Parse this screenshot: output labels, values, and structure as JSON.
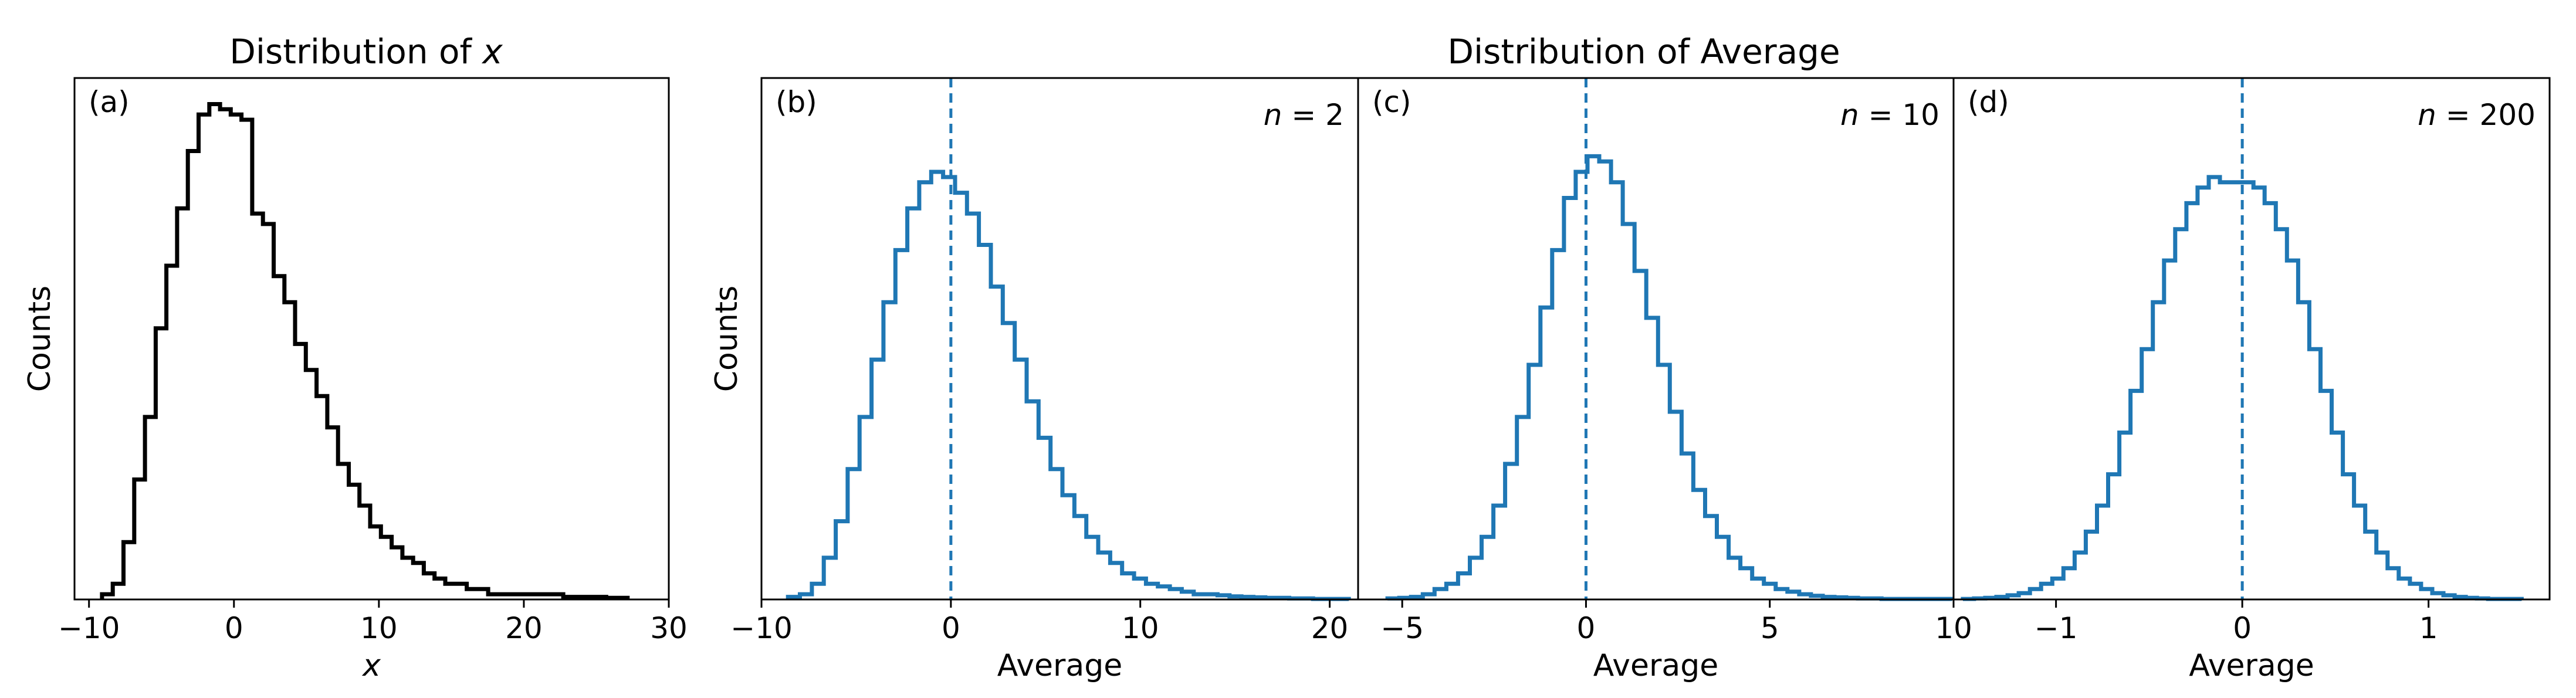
{
  "colors": {
    "black": "#000000",
    "blue": "#1f77b4"
  },
  "figure": {
    "left_title": "Distribution of",
    "left_title_var": "x",
    "right_title": "Distribution of Average"
  },
  "chart_data": [
    {
      "id": "a",
      "type": "line",
      "step": true,
      "panel_label": "(a)",
      "title": "Distribution of x",
      "xlabel": "x",
      "ylabel": "Counts",
      "xlim": [
        -11.0,
        30.0
      ],
      "ylim": [
        0,
        100
      ],
      "xticks": [
        -10,
        0,
        10,
        20,
        30
      ],
      "color": "black",
      "mean_line": null,
      "bin_edges": [
        -9.1,
        -8.36,
        -7.62,
        -6.88,
        -6.14,
        -5.4,
        -4.66,
        -3.92,
        -3.18,
        -2.44,
        -1.7,
        -0.96,
        -0.22,
        0.52,
        1.26,
        2.0,
        2.74,
        3.48,
        4.22,
        4.96,
        5.7,
        6.44,
        7.18,
        7.92,
        8.66,
        9.4,
        10.14,
        10.88,
        11.62,
        12.36,
        13.1,
        13.84,
        14.58,
        15.32,
        16.06,
        16.8,
        17.54,
        18.28,
        19.02,
        19.76,
        20.5,
        21.24,
        21.98,
        22.72,
        23.46,
        24.2,
        24.94,
        25.68,
        26.42,
        27.16
      ],
      "counts": [
        1,
        3,
        11,
        23,
        35,
        52,
        64,
        75,
        86,
        93,
        95,
        94,
        93,
        92,
        74,
        72,
        62,
        57,
        49,
        44,
        39,
        33,
        26,
        22,
        18,
        14,
        12,
        10,
        8,
        7,
        5,
        4,
        3,
        3,
        2,
        2,
        1,
        1,
        1,
        1,
        1,
        1,
        1,
        0.5,
        0.5,
        0.5,
        0.5,
        0.3,
        0.3
      ]
    },
    {
      "id": "b",
      "type": "line",
      "step": true,
      "panel_label": "(b)",
      "n_label": "n = 2",
      "title": "Distribution of Average",
      "xlabel": "Average",
      "ylabel": "Counts",
      "xlim": [
        -10.0,
        21.5
      ],
      "ylim": [
        0,
        100
      ],
      "xticks": [
        -10,
        0,
        10,
        20
      ],
      "color": "blue",
      "mean_line": 0,
      "bin_edges": [
        -8.6,
        -7.97,
        -7.34,
        -6.71,
        -6.08,
        -5.45,
        -4.82,
        -4.19,
        -3.56,
        -2.93,
        -2.3,
        -1.67,
        -1.04,
        -0.41,
        0.22,
        0.85,
        1.48,
        2.11,
        2.74,
        3.37,
        4.0,
        4.63,
        5.26,
        5.89,
        6.52,
        7.15,
        7.78,
        8.41,
        9.04,
        9.67,
        10.3,
        10.93,
        11.56,
        12.19,
        12.82,
        13.45,
        14.08,
        14.71,
        15.34,
        15.97,
        16.6,
        17.23,
        17.86,
        18.49,
        19.12,
        19.75,
        20.38,
        21.01
      ],
      "counts": [
        0.5,
        1,
        3,
        8,
        15,
        25,
        35,
        46,
        57,
        67,
        75,
        80,
        82,
        81,
        78,
        74,
        68,
        60,
        53,
        46,
        38,
        31,
        25,
        20,
        16,
        12,
        9,
        7,
        5,
        4,
        3,
        2.5,
        2,
        1.5,
        1,
        1,
        0.8,
        0.6,
        0.5,
        0.4,
        0.3,
        0.3,
        0.2,
        0.2,
        0.1,
        0.1,
        0.1
      ]
    },
    {
      "id": "c",
      "type": "line",
      "step": true,
      "panel_label": "(c)",
      "n_label": "n = 10",
      "xlabel": "Average",
      "xlim": [
        -6.2,
        10.0
      ],
      "ylim": [
        0,
        100
      ],
      "xticks": [
        -5,
        0,
        5,
        10
      ],
      "color": "blue",
      "mean_line": 0,
      "bin_edges": [
        -5.4,
        -5.08,
        -4.76,
        -4.44,
        -4.12,
        -3.8,
        -3.48,
        -3.16,
        -2.84,
        -2.52,
        -2.2,
        -1.88,
        -1.56,
        -1.24,
        -0.92,
        -0.6,
        -0.28,
        0.04,
        0.36,
        0.68,
        1.0,
        1.32,
        1.64,
        1.96,
        2.28,
        2.6,
        2.92,
        3.24,
        3.56,
        3.88,
        4.2,
        4.52,
        4.84,
        5.16,
        5.48,
        5.8,
        6.12,
        6.44,
        6.76,
        7.08,
        7.4,
        7.72,
        8.04,
        8.36,
        8.68,
        9.0,
        9.32,
        9.64,
        9.96
      ],
      "counts": [
        0.2,
        0.3,
        0.5,
        1,
        2,
        3,
        5,
        8,
        12,
        18,
        26,
        35,
        45,
        56,
        67,
        77,
        82,
        85,
        84,
        80,
        72,
        63,
        54,
        45,
        36,
        28,
        21,
        16,
        12,
        8,
        6,
        4,
        3,
        2,
        1.5,
        1,
        0.7,
        0.5,
        0.4,
        0.3,
        0.2,
        0.2,
        0.1,
        0.1,
        0.1,
        0.1,
        0.1,
        0.1
      ]
    },
    {
      "id": "d",
      "type": "line",
      "step": true,
      "panel_label": "(d)",
      "n_label": "n = 200",
      "xlabel": "Average",
      "xlim": [
        -1.55,
        1.65
      ],
      "ylim": [
        0,
        100
      ],
      "xticks": [
        -1,
        0,
        1
      ],
      "color": "blue",
      "mean_line": 0,
      "bin_edges": [
        -1.5,
        -1.44,
        -1.38,
        -1.32,
        -1.26,
        -1.2,
        -1.14,
        -1.08,
        -1.02,
        -0.96,
        -0.9,
        -0.84,
        -0.78,
        -0.72,
        -0.66,
        -0.6,
        -0.54,
        -0.48,
        -0.42,
        -0.36,
        -0.3,
        -0.24,
        -0.18,
        -0.12,
        -0.06,
        0.0,
        0.06,
        0.12,
        0.18,
        0.24,
        0.3,
        0.36,
        0.42,
        0.48,
        0.54,
        0.6,
        0.66,
        0.72,
        0.78,
        0.84,
        0.9,
        0.96,
        1.02,
        1.08,
        1.14,
        1.2,
        1.26,
        1.32,
        1.38,
        1.44,
        1.5
      ],
      "counts": [
        0.1,
        0.2,
        0.3,
        0.5,
        0.8,
        1.2,
        2,
        3,
        4,
        6,
        9,
        13,
        18,
        24,
        32,
        40,
        48,
        57,
        65,
        71,
        76,
        79,
        81,
        80,
        80,
        80,
        79,
        76,
        71,
        65,
        57,
        48,
        40,
        32,
        24,
        18,
        13,
        9,
        6,
        4,
        3,
        2,
        1.2,
        0.8,
        0.5,
        0.3,
        0.2,
        0.1,
        0.1,
        0.1
      ]
    }
  ]
}
